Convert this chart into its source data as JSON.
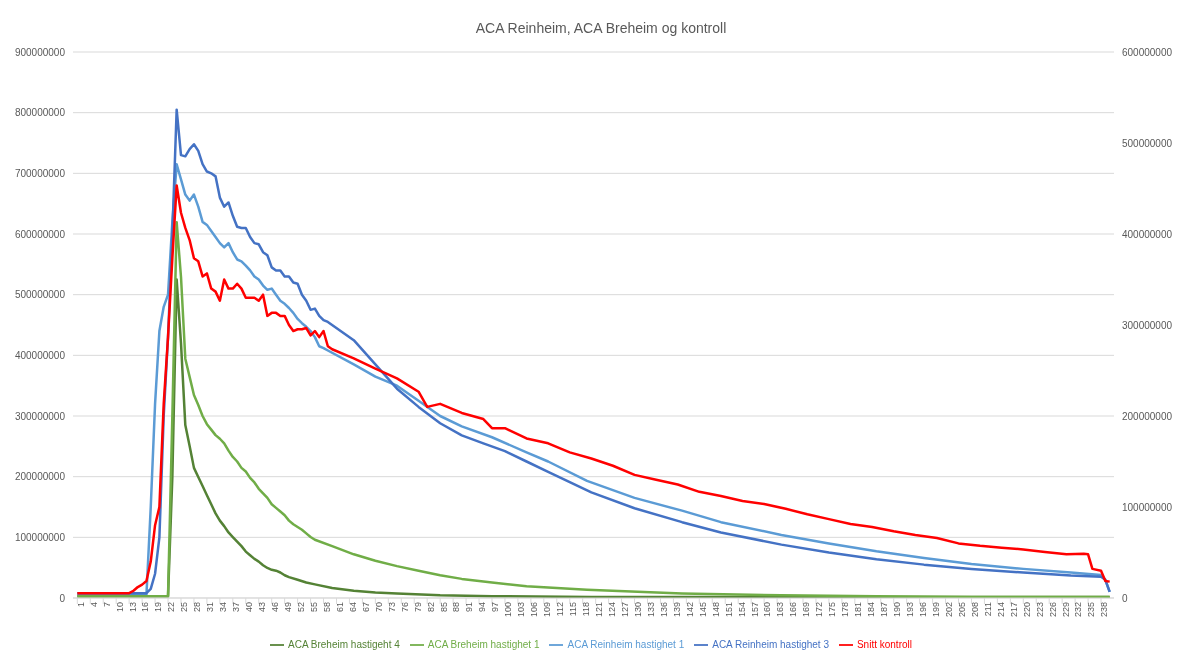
{
  "chart_data": {
    "type": "line",
    "title": "ACA Reinheim, ACA Breheim og kontroll",
    "xlim": [
      0,
      241
    ],
    "xticks": [
      1,
      4,
      7,
      10,
      13,
      16,
      19,
      22,
      25,
      28,
      31,
      34,
      37,
      40,
      43,
      46,
      49,
      52,
      55,
      58,
      61,
      64,
      67,
      70,
      73,
      76,
      79,
      82,
      85,
      88,
      91,
      94,
      97,
      100,
      103,
      106,
      109,
      112,
      115,
      118,
      121,
      124,
      127,
      130,
      133,
      136,
      139,
      142,
      145,
      148,
      151,
      154,
      157,
      160,
      163,
      166,
      169,
      172,
      175,
      178,
      181,
      184,
      187,
      190,
      193,
      196,
      199,
      202,
      205,
      208,
      211,
      214,
      217,
      220,
      223,
      226,
      229,
      232,
      235,
      238
    ],
    "ylim": [
      0,
      900000000
    ],
    "yticks": [
      0,
      100000000,
      200000000,
      300000000,
      400000000,
      500000000,
      600000000,
      700000000,
      800000000,
      900000000
    ],
    "y2lim": [
      0,
      600000000
    ],
    "y2ticks": [
      0,
      100000000,
      200000000,
      300000000,
      400000000,
      500000000,
      600000000
    ],
    "grid": "y",
    "legend": "bottom",
    "marker": "none",
    "line_style": "solid",
    "series": [
      {
        "name": "Snitt kontroll",
        "color": "#ff0000",
        "x": [
          1,
          5,
          10,
          13,
          14,
          15,
          16,
          17,
          18,
          19,
          20,
          21,
          22,
          23,
          24,
          25,
          26,
          27,
          28,
          29,
          30,
          31,
          32,
          33,
          34,
          35,
          36,
          37,
          38,
          39,
          40,
          41,
          42,
          43,
          44,
          45,
          46,
          47,
          48,
          49,
          50,
          51,
          52,
          53,
          54,
          55,
          56,
          57,
          58,
          59,
          60,
          65,
          70,
          75,
          80,
          82,
          85,
          90,
          95,
          97,
          100,
          105,
          110,
          115,
          120,
          125,
          130,
          135,
          140,
          145,
          150,
          155,
          160,
          165,
          170,
          175,
          180,
          185,
          190,
          195,
          200,
          205,
          210,
          215,
          220,
          225,
          230,
          234,
          235,
          236,
          238,
          239,
          240
        ],
        "values": [
          8000000,
          8000000,
          8000000,
          8000000,
          12000000,
          18000000,
          22000000,
          28000000,
          60000000,
          120000000,
          150000000,
          320000000,
          430000000,
          560000000,
          680000000,
          635000000,
          610000000,
          590000000,
          560000000,
          555000000,
          530000000,
          535000000,
          510000000,
          505000000,
          490000000,
          525000000,
          510000000,
          510000000,
          518000000,
          510000000,
          495000000,
          495000000,
          495000000,
          490000000,
          500000000,
          465000000,
          470000000,
          470000000,
          465000000,
          465000000,
          450000000,
          440000000,
          443000000,
          443000000,
          445000000,
          433000000,
          440000000,
          430000000,
          440000000,
          415000000,
          410000000,
          395000000,
          378000000,
          362000000,
          340000000,
          315000000,
          320000000,
          305000000,
          295000000,
          280000000,
          280000000,
          263000000,
          255000000,
          240000000,
          230000000,
          218000000,
          203000000,
          195000000,
          187000000,
          175000000,
          168000000,
          160000000,
          155000000,
          147000000,
          138000000,
          130000000,
          122000000,
          117000000,
          110000000,
          104000000,
          99000000,
          90000000,
          86000000,
          83000000,
          80000000,
          76000000,
          72000000,
          73000000,
          72000000,
          48000000,
          45000000,
          28000000,
          27000000
        ]
      },
      {
        "name": "ACA Reinheim hastighet 3",
        "color": "#4472c4",
        "x": [
          1,
          17,
          18,
          19,
          20,
          21,
          22,
          23,
          24,
          25,
          26,
          27,
          28,
          29,
          30,
          31,
          32,
          33,
          34,
          35,
          36,
          37,
          38,
          39,
          40,
          41,
          42,
          43,
          44,
          45,
          46,
          47,
          48,
          49,
          50,
          51,
          52,
          53,
          54,
          55,
          56,
          57,
          58,
          59,
          65,
          70,
          75,
          80,
          85,
          90,
          95,
          100,
          105,
          110,
          115,
          120,
          130,
          141,
          150,
          164,
          175,
          186,
          197,
          208,
          220,
          231,
          238,
          239,
          240
        ],
        "values": [
          8000000,
          8000000,
          15000000,
          40000000,
          100000000,
          300000000,
          430000000,
          600000000,
          805000000,
          730000000,
          728000000,
          740000000,
          748000000,
          737000000,
          715000000,
          703000000,
          700000000,
          695000000,
          660000000,
          645000000,
          652000000,
          630000000,
          612000000,
          610000000,
          610000000,
          595000000,
          585000000,
          583000000,
          570000000,
          565000000,
          545000000,
          540000000,
          540000000,
          530000000,
          530000000,
          520000000,
          518000000,
          500000000,
          490000000,
          475000000,
          477000000,
          465000000,
          458000000,
          455000000,
          425000000,
          385000000,
          345000000,
          315000000,
          288000000,
          268000000,
          255000000,
          242000000,
          225000000,
          208000000,
          191000000,
          174000000,
          148000000,
          125000000,
          108000000,
          88000000,
          75000000,
          64000000,
          55000000,
          48000000,
          42000000,
          37000000,
          35000000,
          30000000,
          10000000
        ]
      },
      {
        "name": "ACA Breheim hastighet 1",
        "color": "#70ad47",
        "axis": "y2",
        "x": [
          1,
          22,
          23,
          24,
          25,
          26,
          27,
          28,
          29,
          30,
          31,
          32,
          33,
          34,
          35,
          36,
          37,
          38,
          39,
          40,
          41,
          42,
          43,
          44,
          45,
          46,
          47,
          48,
          49,
          50,
          51,
          52,
          53,
          54,
          55,
          56,
          60,
          65,
          70,
          75,
          80,
          85,
          90,
          97,
          105,
          119,
          141,
          164,
          186,
          208,
          240
        ],
        "values": [
          2000000,
          2000000,
          200000000,
          413000000,
          353000000,
          263000000,
          243000000,
          223000000,
          212000000,
          200000000,
          191000000,
          185000000,
          179000000,
          175000000,
          170000000,
          162000000,
          155000000,
          150000000,
          143000000,
          139000000,
          132000000,
          127000000,
          120000000,
          115000000,
          110000000,
          103000000,
          99000000,
          95000000,
          91000000,
          85000000,
          81000000,
          78000000,
          75000000,
          71000000,
          67000000,
          64000000,
          57000000,
          48000000,
          41000000,
          35000000,
          30000000,
          25000000,
          21000000,
          17000000,
          13000000,
          9000000,
          5000000,
          3000000,
          2000000,
          1000000,
          1000000
        ]
      },
      {
        "name": "ACA Reinheim hastighet 1",
        "color": "#5b9bd5",
        "x": [
          1,
          17,
          18,
          19,
          20,
          21,
          22,
          23,
          24,
          25,
          26,
          27,
          28,
          29,
          30,
          31,
          32,
          33,
          34,
          35,
          36,
          37,
          38,
          39,
          40,
          41,
          42,
          43,
          44,
          45,
          46,
          47,
          48,
          49,
          50,
          51,
          52,
          53,
          54,
          55,
          56,
          57,
          58,
          59,
          65,
          70,
          75,
          80,
          85,
          90,
          97,
          105,
          110,
          119,
          130,
          141,
          150,
          164,
          175,
          186,
          197,
          208,
          220,
          231,
          238,
          239,
          240
        ],
        "values": [
          5000000,
          5000000,
          150000000,
          320000000,
          440000000,
          480000000,
          500000000,
          620000000,
          715000000,
          690000000,
          665000000,
          655000000,
          665000000,
          645000000,
          620000000,
          615000000,
          605000000,
          595000000,
          585000000,
          578000000,
          585000000,
          570000000,
          558000000,
          555000000,
          548000000,
          540000000,
          530000000,
          525000000,
          515000000,
          508000000,
          510000000,
          500000000,
          490000000,
          485000000,
          478000000,
          470000000,
          460000000,
          453000000,
          447000000,
          440000000,
          430000000,
          415000000,
          412000000,
          408000000,
          385000000,
          365000000,
          350000000,
          325000000,
          300000000,
          283000000,
          265000000,
          240000000,
          225000000,
          193000000,
          165000000,
          144000000,
          125000000,
          104000000,
          90000000,
          77000000,
          66000000,
          56000000,
          48000000,
          42000000,
          38000000,
          30000000,
          10000000
        ]
      },
      {
        "name": "ACA Breheim hastigeht 4",
        "color": "#548235",
        "axis": "y2",
        "x": [
          1,
          22,
          23,
          24,
          25,
          26,
          27,
          28,
          29,
          30,
          31,
          32,
          33,
          34,
          35,
          36,
          37,
          38,
          39,
          40,
          41,
          42,
          43,
          44,
          45,
          46,
          47,
          48,
          49,
          50,
          52,
          54,
          56,
          60,
          65,
          70,
          75,
          85,
          97,
          120,
          240
        ],
        "values": [
          2000000,
          2000000,
          133000000,
          350000000,
          280000000,
          190000000,
          167000000,
          143000000,
          133000000,
          123000000,
          113000000,
          103000000,
          93000000,
          85000000,
          79000000,
          72000000,
          67000000,
          62000000,
          57000000,
          51000000,
          47000000,
          43000000,
          40000000,
          36000000,
          33000000,
          31000000,
          30000000,
          28000000,
          25000000,
          23000000,
          20000000,
          17000000,
          15000000,
          11000000,
          8000000,
          6000000,
          5000000,
          3000000,
          2000000,
          1000000,
          1000000
        ]
      }
    ]
  }
}
